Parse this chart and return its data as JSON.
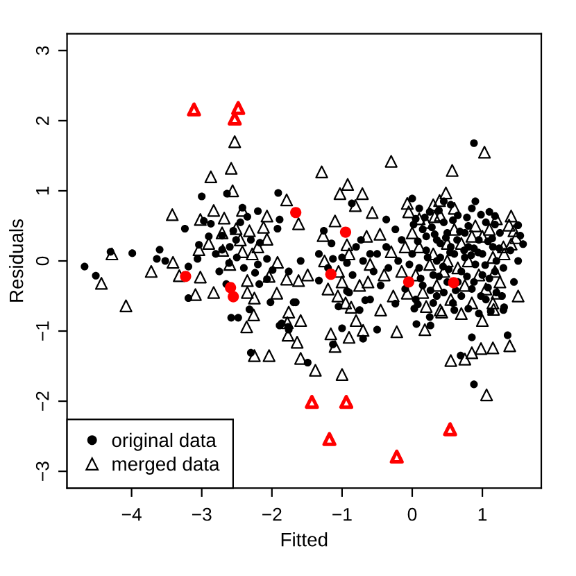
{
  "chart_data": {
    "type": "scatter",
    "xlabel": "Fitted",
    "ylabel": "Residuals",
    "xlim": [
      -4.92,
      1.84
    ],
    "ylim": [
      -3.24,
      3.24
    ],
    "xticks": [
      {
        "value": -4,
        "label": "−4"
      },
      {
        "value": -3,
        "label": "−3"
      },
      {
        "value": -2,
        "label": "−2"
      },
      {
        "value": -1,
        "label": "−1"
      },
      0,
      1
    ],
    "yticks": [
      {
        "value": -3,
        "label": "−3"
      },
      {
        "value": -2,
        "label": "−2"
      },
      {
        "value": -1,
        "label": "−1"
      },
      0,
      1,
      2,
      3
    ],
    "legend": "bottom left",
    "series": [
      {
        "name": "original data",
        "color": "#000000",
        "marker": "circle",
        "x": [
          -4.67,
          -4.51,
          -4.3,
          -3.99,
          -3.6,
          -3.64,
          -3.52,
          -3.19,
          -3.24,
          -3.0,
          -2.64,
          -2.97,
          -2.87,
          -3.04,
          -2.71,
          -2.61,
          -2.65,
          -2.42,
          -2.35,
          -2.2,
          -1.91,
          -1.89,
          -1.92,
          -2.24,
          -1.99,
          -1.76,
          -1.59,
          -2.51,
          -2.55,
          -2.71,
          -2.17,
          -2.07,
          -3.06,
          -3.19,
          -2.58,
          -2.48,
          -2.3,
          -2.32,
          -2.18,
          -2.02,
          -1.86,
          -1.69,
          -1.77,
          -2.07,
          0.88,
          -0.86,
          -0.37,
          -1.26,
          -1.33,
          -1.33,
          -0.24,
          -0.37,
          -0.34,
          0.0,
          -0.73,
          -0.6,
          -0.93,
          1.18,
          1.51,
          1.54,
          1.58,
          1.51,
          -1.13,
          0.88,
          -1.49,
          -1.13,
          -0.5,
          -1.76,
          -1.66,
          -1.0,
          -0.7,
          0.06,
          0.69,
          0.85,
          1.36,
          1.31,
          -0.24,
          0.03,
          0.26,
          -0.67,
          -0.93,
          -1.89,
          0.05,
          0.15,
          0.25,
          0.35,
          0.45,
          0.55,
          0.65,
          0.75,
          0.85,
          0.95,
          1.05,
          1.15,
          1.25,
          0.0,
          0.1,
          0.2,
          0.3,
          0.4,
          0.5,
          0.6,
          0.7,
          0.8,
          0.9,
          1.0,
          1.1,
          1.2,
          1.3,
          -0.1,
          0.05,
          0.15,
          0.3,
          0.45,
          0.6,
          0.7,
          0.85,
          0.95,
          1.05,
          1.2,
          1.3,
          0.2,
          0.5,
          0.8,
          1.1,
          0.65,
          0.35,
          0.9,
          0.55,
          0.25,
          -0.15,
          -0.2,
          1.4,
          1.45,
          0.75,
          0.4,
          1.0,
          0.1,
          -1.2,
          -1.0,
          -0.85,
          -0.7,
          -0.55,
          -0.45,
          -0.9,
          -1.05,
          -0.75,
          -0.6,
          -1.15,
          -0.8,
          -0.5,
          -2.9,
          -2.8,
          -2.6,
          -2.45,
          -2.3,
          -2.2,
          -2.4,
          -2.75,
          -2.5,
          0.02,
          0.18,
          0.28,
          0.38,
          0.48,
          0.58,
          0.68,
          0.78,
          0.88,
          0.98,
          1.08,
          1.18,
          0.08,
          0.22,
          0.32,
          0.44,
          0.54,
          0.64,
          0.74,
          0.84,
          0.94,
          1.04,
          1.14,
          1.24,
          -0.04,
          0.12,
          0.26,
          0.38,
          0.52,
          0.62,
          0.78,
          0.88,
          0.98,
          1.08,
          1.18,
          1.28,
          0.08,
          0.35,
          0.58,
          0.8,
          1.12,
          0.45
        ],
        "values": [
          -0.08,
          -0.21,
          0.13,
          0.11,
          0.16,
          0.03,
          0.0,
          -0.08,
          0.46,
          0.92,
          0.96,
          0.57,
          0.53,
          0.23,
          0.16,
          -0.03,
          -0.33,
          0.76,
          0.63,
          0.71,
          0.97,
          0.59,
          0.46,
          -0.17,
          -0.13,
          -0.15,
          0.0,
          0.3,
          0.43,
          0.36,
          0.26,
          0.03,
          0.03,
          -0.53,
          -0.81,
          -0.81,
          -1.31,
          -0.69,
          -0.33,
          -0.59,
          -0.89,
          -0.59,
          -0.94,
          -0.26,
          1.68,
          0.82,
          0.59,
          0.43,
          0.1,
          -0.28,
          0.45,
          0.2,
          -0.1,
          0.89,
          0.3,
          0.1,
          -0.03,
          0.64,
          0.51,
          0.36,
          0.24,
          0.0,
          0.03,
          -1.76,
          -1.45,
          -1.19,
          -0.98,
          -0.98,
          -0.59,
          -0.96,
          -1.11,
          -0.9,
          -1.35,
          -1.09,
          -1.06,
          -0.66,
          -0.61,
          -0.68,
          -0.92,
          -0.56,
          -0.43,
          -0.92,
          0.6,
          0.45,
          0.7,
          0.3,
          0.55,
          0.2,
          0.65,
          0.4,
          0.75,
          0.3,
          0.55,
          0.2,
          0.4,
          0.1,
          -0.1,
          0.15,
          -0.2,
          0.05,
          -0.3,
          0.1,
          -0.15,
          0.2,
          -0.05,
          0.1,
          -0.25,
          0.0,
          -0.1,
          -0.4,
          -0.55,
          -0.35,
          -0.6,
          -0.45,
          -0.7,
          -0.5,
          -0.4,
          -0.75,
          -0.55,
          -0.45,
          -0.7,
          0.35,
          0.4,
          0.5,
          0.7,
          -0.3,
          0.0,
          0.85,
          0.8,
          -0.8,
          0.3,
          0.0,
          0.15,
          -0.3,
          0.05,
          0.25,
          -0.2,
          0.75,
          -0.1,
          0.05,
          -0.2,
          0.0,
          -0.15,
          -0.35,
          -0.45,
          -0.65,
          -0.7,
          -0.55,
          0.25,
          0.2,
          0.1,
          0.35,
          0.1,
          0.2,
          0.55,
          0.3,
          -0.05,
          -0.1,
          -0.15,
          0.05,
          0.52,
          0.62,
          0.48,
          0.72,
          0.33,
          0.58,
          0.42,
          0.62,
          0.18,
          0.66,
          0.28,
          0.52,
          0.28,
          0.05,
          0.38,
          -0.08,
          0.12,
          0.3,
          0.15,
          0.08,
          0.12,
          -0.06,
          0.32,
          0.18,
          -0.05,
          -0.25,
          -0.42,
          -0.22,
          -0.12,
          -0.42,
          -0.22,
          -0.3,
          -0.5,
          -0.38,
          -0.15,
          -0.5,
          -0.62,
          -0.5,
          -0.6,
          -0.68,
          -0.72,
          0.85
        ]
      },
      {
        "name": "merged data",
        "color": "#000000",
        "marker": "triangle",
        "x": [
          -2.53,
          -2.58,
          -2.87,
          -2.56,
          -3.42,
          -3.02,
          -2.83,
          -1.79,
          -1.62,
          -2.07,
          -2.42,
          -2.68,
          -2.51,
          -2.71,
          -2.32,
          -2.12,
          -2.07,
          -2.42,
          -2.28,
          -1.92,
          -4.28,
          -4.43,
          -3.72,
          -3.41,
          -3.32,
          -3.02,
          -2.35,
          -2.04,
          -1.62,
          -3.04,
          -4.08,
          -3.09,
          -2.83,
          -2.25,
          -2.26,
          -2.36,
          -1.93,
          -1.79,
          -1.76,
          -1.77,
          -1.64,
          -2.25,
          -2.04,
          -1.59,
          1.03,
          -1.29,
          -0.3,
          0.57,
          -0.92,
          -0.71,
          -1.03,
          0.48,
          0.39,
          -0.81,
          -0.57,
          -1.1,
          -1.27,
          -0.46,
          -0.07,
          0.32,
          1.41,
          1.38,
          1.45,
          1.48,
          1.41,
          1.31,
          1.18,
          -0.3,
          -0.63,
          -1.0,
          -0.93,
          -1.49,
          1.06,
          0.55,
          0.75,
          0.85,
          1.39,
          1.15,
          1.51,
          -0.22,
          -1.0,
          -1.38,
          -1.16,
          -1.1,
          -0.9,
          -1.78,
          -1.59,
          -0.87,
          -1.06,
          -0.27,
          -0.07,
          0.18,
          0.42,
          0.98,
          1.16,
          1.21,
          -0.7,
          0.0,
          0.1,
          0.2,
          0.3,
          0.4,
          0.5,
          0.6,
          0.7,
          0.8,
          0.9,
          1.0,
          1.1,
          1.2,
          1.3,
          0.05,
          0.15,
          0.25,
          0.35,
          0.45,
          0.55,
          0.65,
          0.75,
          0.85,
          0.95,
          1.05,
          1.15,
          1.25,
          -0.1,
          -0.15,
          0.1,
          0.6,
          0.85,
          1.15,
          0.4,
          0.7,
          1.0,
          0.2,
          -0.05,
          0.5,
          0.3,
          -1.25,
          -1.05,
          -0.9,
          -0.75,
          -0.6,
          -0.45,
          -0.95,
          -1.2,
          -0.65,
          -0.4,
          -0.8,
          -2.9,
          -2.7,
          -2.45,
          -2.2,
          -2.6,
          -2.35
        ],
        "values": [
          1.7,
          1.32,
          1.2,
          1.0,
          0.66,
          0.59,
          0.72,
          0.87,
          0.53,
          0.64,
          0.72,
          0.61,
          0.46,
          0.4,
          0.43,
          0.48,
          0.31,
          0.13,
          0.1,
          -0.02,
          0.1,
          -0.32,
          -0.15,
          -0.02,
          -0.21,
          -0.23,
          -0.28,
          -0.22,
          -0.28,
          0.16,
          -0.64,
          -0.48,
          -0.45,
          -0.53,
          -0.77,
          -0.94,
          -0.46,
          -0.26,
          -0.73,
          -1.06,
          -1.16,
          -1.35,
          -1.35,
          -1.39,
          1.55,
          1.27,
          1.42,
          1.29,
          1.09,
          0.96,
          0.96,
          0.97,
          0.86,
          0.79,
          0.69,
          0.57,
          0.36,
          0.38,
          0.82,
          0.63,
          0.64,
          0.51,
          0.43,
          0.33,
          0.24,
          0.1,
          -0.15,
          0.13,
          -0.3,
          -0.3,
          0.23,
          -0.2,
          -1.91,
          -1.42,
          -1.4,
          -1.31,
          -1.21,
          -1.24,
          -0.5,
          -1.01,
          -1.62,
          -1.56,
          -1.04,
          -1.22,
          -1.09,
          -0.88,
          -0.85,
          -0.66,
          -0.5,
          -0.5,
          -0.46,
          -0.98,
          -0.73,
          -1.25,
          -0.69,
          -0.46,
          -0.99,
          0.4,
          0.2,
          0.55,
          0.1,
          0.65,
          0.0,
          0.45,
          0.25,
          0.0,
          0.5,
          0.35,
          0.45,
          0.6,
          0.2,
          -0.2,
          -0.45,
          -0.05,
          -0.35,
          -0.15,
          -0.55,
          -0.1,
          -0.35,
          -0.6,
          -0.2,
          -0.4,
          -0.6,
          -0.3,
          0.2,
          -0.15,
          0.6,
          0.75,
          0.35,
          0.05,
          -0.7,
          -0.75,
          -0.85,
          -0.65,
          0.7,
          0.25,
          0.8,
          0.0,
          -0.15,
          0.1,
          -0.35,
          -0.05,
          -0.7,
          -0.6,
          -0.4,
          0.35,
          -0.2,
          -0.85,
          0.25,
          0.15,
          0.3,
          0.2,
          -0.05,
          -0.45
        ]
      },
      {
        "color": "#ff0000",
        "marker": "circle",
        "x": [
          -1.66,
          -3.23,
          -2.59,
          -2.55,
          -0.95,
          -1.16,
          -0.05,
          0.59
        ],
        "values": [
          0.69,
          -0.22,
          -0.38,
          -0.51,
          0.41,
          -0.19,
          -0.3,
          -0.31
        ]
      },
      {
        "color": "#ff0000",
        "marker": "triangle",
        "x": [
          -3.11,
          -2.48,
          -2.53,
          -1.43,
          -0.94,
          -1.18,
          -0.22,
          0.54
        ],
        "values": [
          2.16,
          2.18,
          2.03,
          -2.01,
          -2.01,
          -2.54,
          -2.79,
          -2.4
        ]
      }
    ]
  }
}
